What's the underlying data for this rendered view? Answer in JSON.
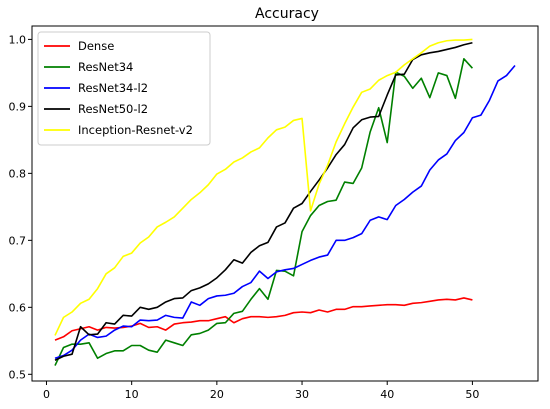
{
  "chart_data": {
    "type": "line",
    "title": "Accuracy",
    "xlabel": "",
    "ylabel": "",
    "xlim": [
      -1.7,
      57.7
    ],
    "ylim": [
      0.49,
      1.02
    ],
    "xticks": [
      0,
      10,
      20,
      30,
      40,
      50
    ],
    "yticks": [
      0.5,
      0.6,
      0.7,
      0.8,
      0.9,
      1.0
    ],
    "xtick_labels": [
      "0",
      "10",
      "20",
      "30",
      "40",
      "50"
    ],
    "ytick_labels": [
      "0.5",
      "0.6",
      "0.7",
      "0.8",
      "0.9",
      "1.0"
    ],
    "grid": false,
    "legend_position": "top-left",
    "series": [
      {
        "name": "Dense",
        "color": "#ff0000",
        "x": [
          1,
          2,
          3,
          4,
          5,
          6,
          7,
          8,
          9,
          10,
          11,
          12,
          13,
          14,
          15,
          16,
          17,
          18,
          19,
          20,
          21,
          22,
          23,
          24,
          25,
          26,
          27,
          28,
          29,
          30,
          31,
          32,
          33,
          34,
          35,
          36,
          37,
          38,
          39,
          40,
          41,
          42,
          43,
          44,
          45,
          46,
          47,
          48,
          49,
          50
        ],
        "y": [
          0.551,
          0.556,
          0.565,
          0.568,
          0.571,
          0.566,
          0.57,
          0.569,
          0.57,
          0.572,
          0.576,
          0.57,
          0.571,
          0.566,
          0.575,
          0.577,
          0.578,
          0.58,
          0.58,
          0.583,
          0.586,
          0.577,
          0.583,
          0.586,
          0.586,
          0.585,
          0.586,
          0.588,
          0.592,
          0.593,
          0.592,
          0.596,
          0.593,
          0.597,
          0.597,
          0.601,
          0.601,
          0.602,
          0.603,
          0.604,
          0.604,
          0.603,
          0.606,
          0.607,
          0.609,
          0.611,
          0.612,
          0.611,
          0.614,
          0.611
        ]
      },
      {
        "name": "ResNet34",
        "color": "#008000",
        "x": [
          1,
          2,
          3,
          4,
          5,
          6,
          7,
          8,
          9,
          10,
          11,
          12,
          13,
          14,
          15,
          16,
          17,
          18,
          19,
          20,
          21,
          22,
          23,
          24,
          25,
          26,
          27,
          28,
          29,
          30,
          31,
          32,
          33,
          34,
          35,
          36,
          37,
          38,
          39,
          40,
          41,
          42,
          43,
          44,
          45,
          46,
          47,
          48,
          49,
          50
        ],
        "y": [
          0.513,
          0.54,
          0.545,
          0.545,
          0.547,
          0.524,
          0.531,
          0.535,
          0.535,
          0.543,
          0.543,
          0.536,
          0.533,
          0.551,
          0.547,
          0.543,
          0.559,
          0.561,
          0.566,
          0.576,
          0.577,
          0.591,
          0.594,
          0.612,
          0.628,
          0.612,
          0.655,
          0.654,
          0.647,
          0.713,
          0.737,
          0.752,
          0.758,
          0.76,
          0.787,
          0.785,
          0.808,
          0.862,
          0.898,
          0.846,
          0.951,
          0.945,
          0.927,
          0.942,
          0.913,
          0.95,
          0.946,
          0.912,
          0.971,
          0.957
        ]
      },
      {
        "name": "ResNet34-l2",
        "color": "#0000ff",
        "x": [
          1,
          2,
          3,
          4,
          5,
          6,
          7,
          8,
          9,
          10,
          11,
          12,
          13,
          14,
          15,
          16,
          17,
          18,
          19,
          20,
          21,
          22,
          23,
          24,
          25,
          26,
          27,
          28,
          29,
          30,
          31,
          32,
          33,
          34,
          35,
          36,
          37,
          38,
          39,
          40,
          41,
          42,
          43,
          44,
          45,
          46,
          47,
          48,
          49,
          50,
          51,
          52,
          53,
          54,
          55
        ],
        "y": [
          0.524,
          0.528,
          0.536,
          0.551,
          0.56,
          0.555,
          0.557,
          0.566,
          0.572,
          0.571,
          0.581,
          0.58,
          0.581,
          0.588,
          0.585,
          0.584,
          0.608,
          0.603,
          0.613,
          0.617,
          0.618,
          0.621,
          0.631,
          0.637,
          0.654,
          0.643,
          0.653,
          0.656,
          0.658,
          0.664,
          0.67,
          0.675,
          0.678,
          0.7,
          0.7,
          0.704,
          0.71,
          0.73,
          0.735,
          0.731,
          0.752,
          0.761,
          0.772,
          0.781,
          0.805,
          0.82,
          0.829,
          0.849,
          0.861,
          0.883,
          0.887,
          0.909,
          0.938,
          0.946,
          0.961
        ]
      },
      {
        "name": "ResNet50-l2",
        "color": "#000000",
        "x": [
          1,
          2,
          3,
          4,
          5,
          6,
          7,
          8,
          9,
          10,
          11,
          12,
          13,
          14,
          15,
          16,
          17,
          18,
          19,
          20,
          21,
          22,
          23,
          24,
          25,
          26,
          27,
          28,
          29,
          30,
          31,
          32,
          33,
          34,
          35,
          36,
          37,
          38,
          39,
          40,
          41,
          42,
          43,
          44,
          45,
          46,
          47,
          48,
          49,
          50
        ],
        "y": [
          0.521,
          0.527,
          0.53,
          0.571,
          0.559,
          0.56,
          0.577,
          0.575,
          0.588,
          0.587,
          0.6,
          0.597,
          0.6,
          0.608,
          0.613,
          0.614,
          0.625,
          0.629,
          0.635,
          0.644,
          0.656,
          0.671,
          0.666,
          0.682,
          0.692,
          0.697,
          0.72,
          0.726,
          0.748,
          0.755,
          0.773,
          0.79,
          0.808,
          0.828,
          0.843,
          0.868,
          0.88,
          0.884,
          0.885,
          0.917,
          0.947,
          0.948,
          0.97,
          0.977,
          0.98,
          0.982,
          0.985,
          0.988,
          0.992,
          0.995
        ]
      },
      {
        "name": "Inception-Resnet-v2",
        "color": "#ffff00",
        "x": [
          1,
          2,
          3,
          4,
          5,
          6,
          7,
          8,
          9,
          10,
          11,
          12,
          13,
          14,
          15,
          16,
          17,
          18,
          19,
          20,
          21,
          22,
          23,
          24,
          25,
          26,
          27,
          28,
          29,
          30,
          31,
          32,
          33,
          34,
          35,
          36,
          37,
          38,
          39,
          40,
          41,
          42,
          43,
          44,
          45,
          46,
          47,
          48,
          49,
          50
        ],
        "y": [
          0.558,
          0.585,
          0.593,
          0.606,
          0.612,
          0.628,
          0.65,
          0.659,
          0.676,
          0.681,
          0.696,
          0.705,
          0.72,
          0.727,
          0.735,
          0.748,
          0.761,
          0.771,
          0.783,
          0.799,
          0.806,
          0.817,
          0.823,
          0.832,
          0.838,
          0.853,
          0.865,
          0.869,
          0.879,
          0.882,
          0.744,
          0.784,
          0.812,
          0.847,
          0.874,
          0.899,
          0.921,
          0.926,
          0.939,
          0.946,
          0.951,
          0.962,
          0.971,
          0.98,
          0.99,
          0.995,
          0.998,
          0.999,
          0.999,
          1.0
        ]
      }
    ]
  }
}
